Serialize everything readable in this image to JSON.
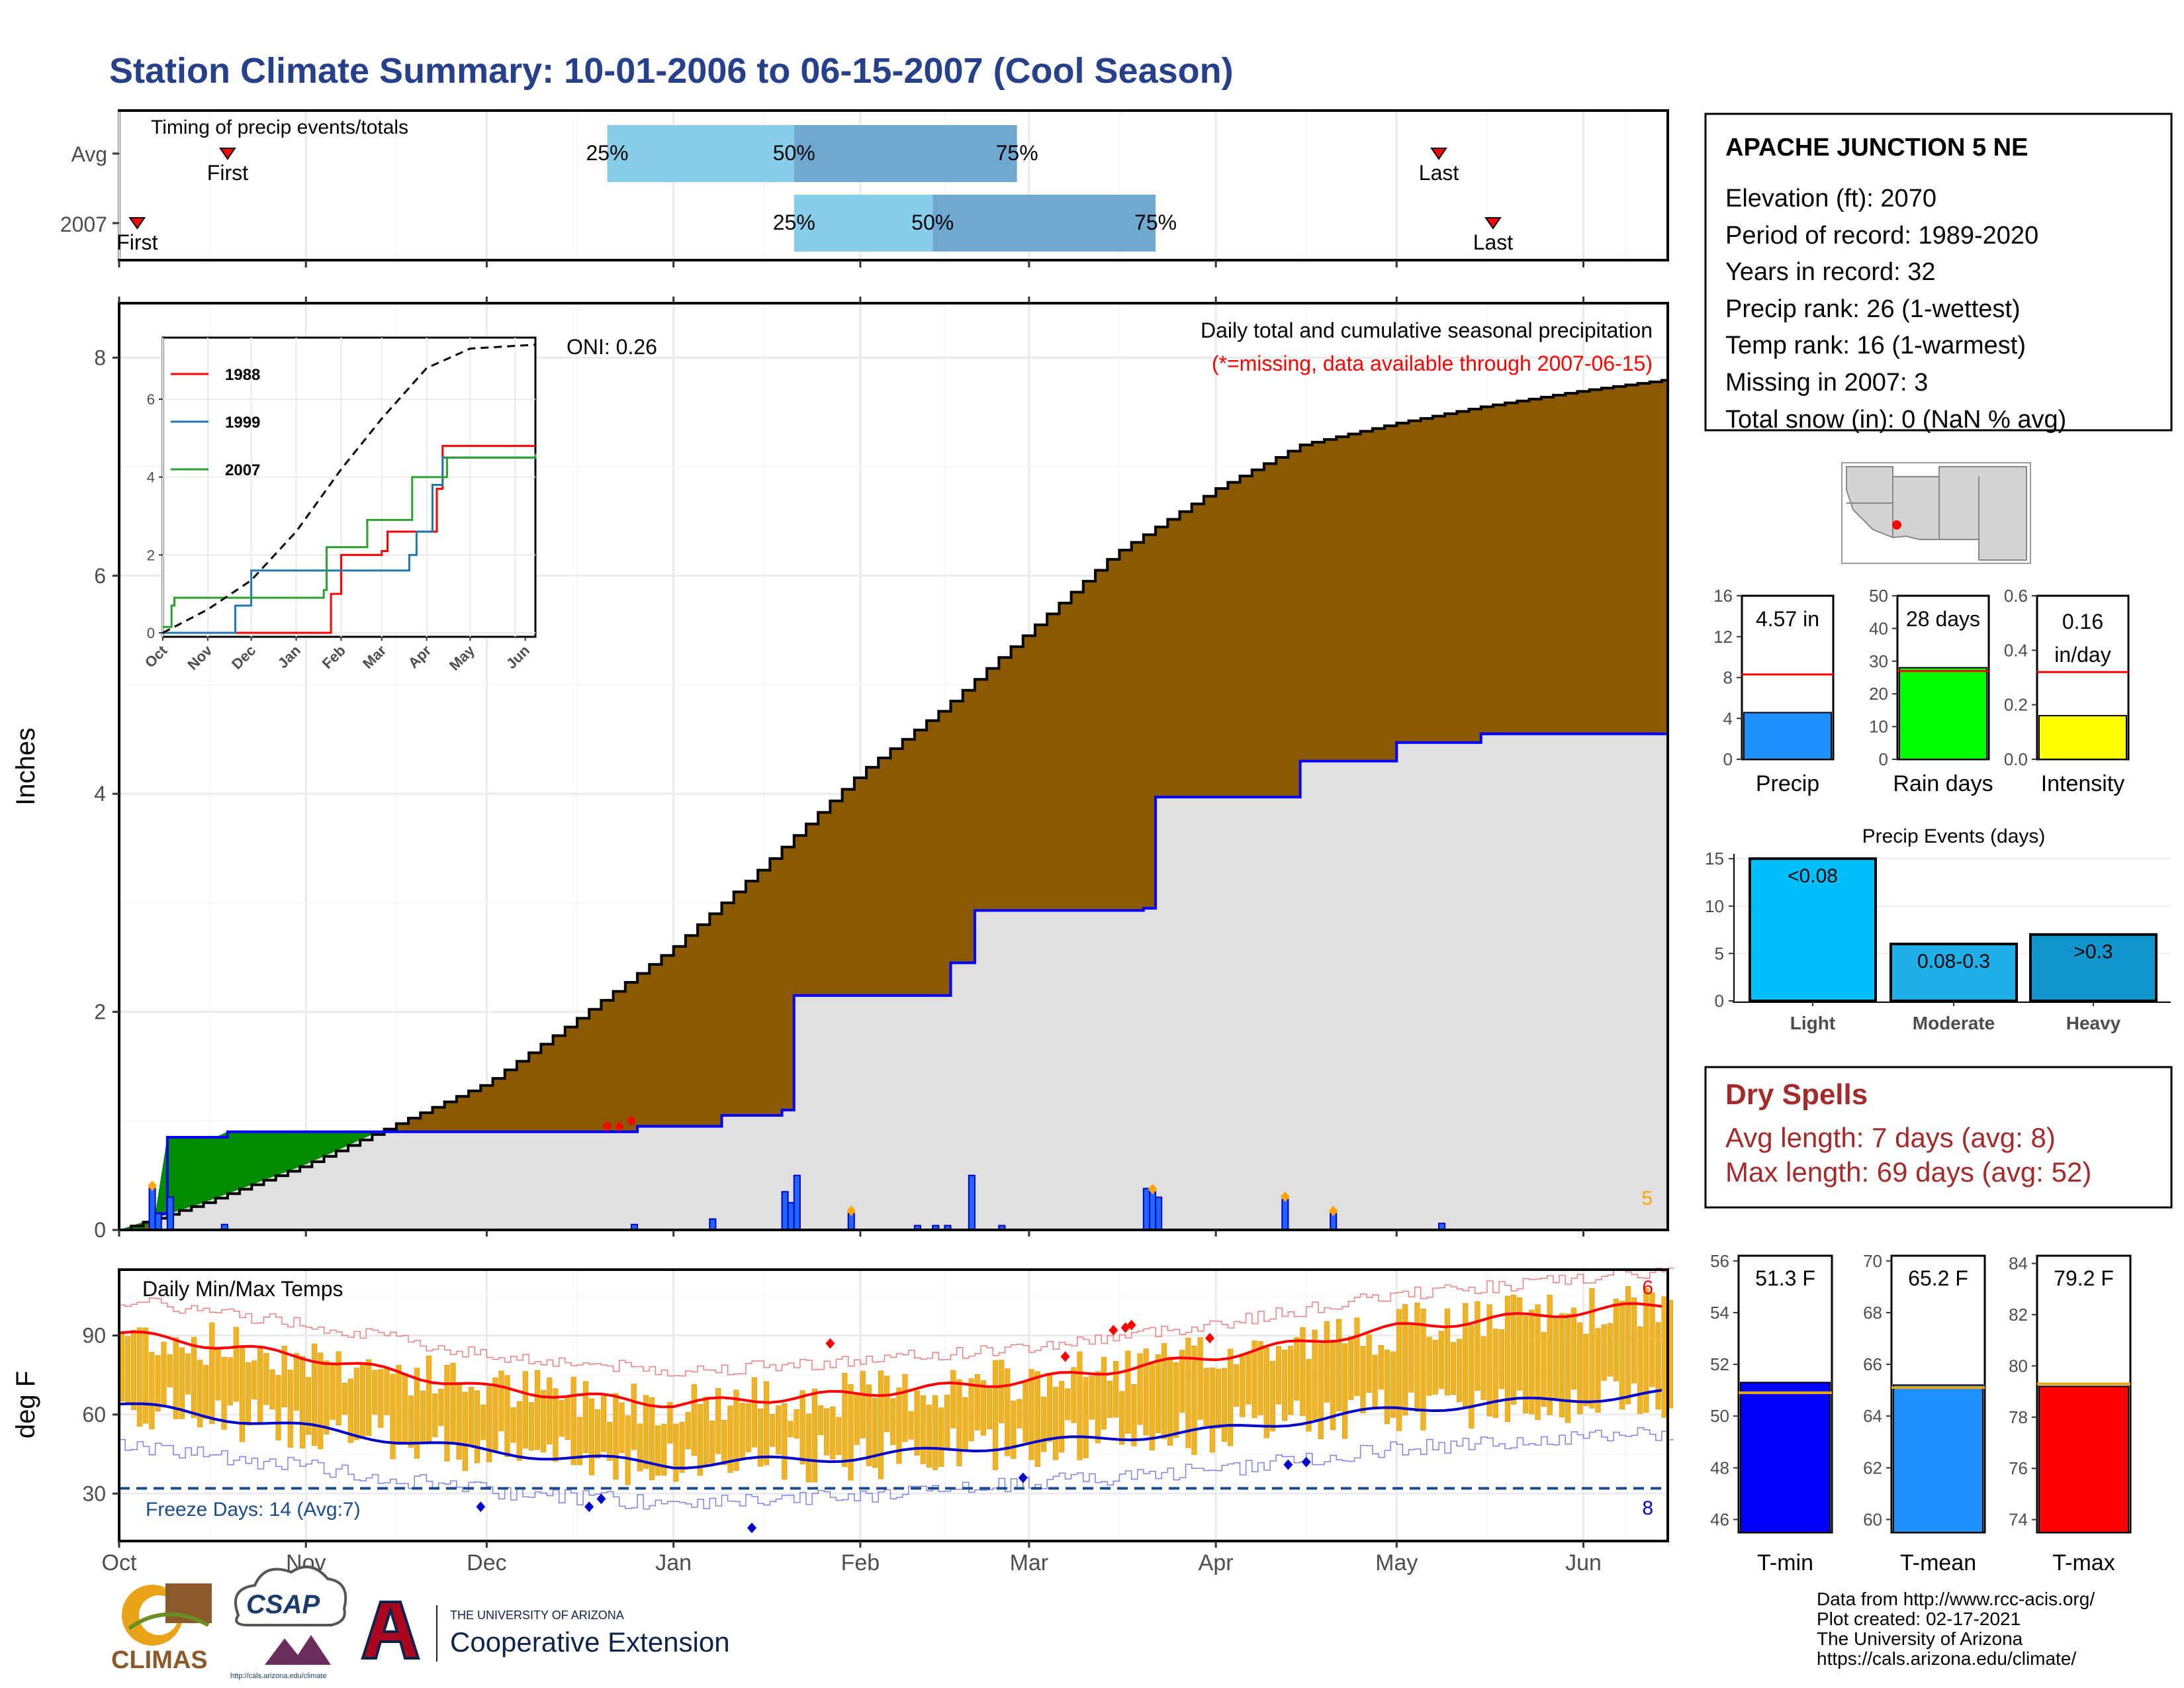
{
  "title": "Station Climate Summary: 10-01-2006 to 06-15-2007 (Cool Season)",
  "colors": {
    "title": "#27408b",
    "brown": "#8b5a00",
    "grey_fill": "#e0e0e0",
    "blue_line": "#0000ff",
    "green_fill": "#008b00",
    "light_blue": "#87ceeb",
    "mid_blue": "#6fa8d1",
    "orange": "#e8a317",
    "red": "#ff0000",
    "dry_spell": "#a52a2a"
  },
  "timing": {
    "label": "Timing of precip events/totals",
    "rows": [
      {
        "name": "Avg",
        "first_label": "First",
        "first_x": "2006-10-19",
        "last_label": "Last",
        "last_x": "2007-05-08",
        "p25_label": "25%",
        "p25": "2006-12-21",
        "p50_label": "50%",
        "p50": "2007-01-21",
        "p75_label": "75%",
        "p75": "2007-02-27"
      },
      {
        "name": "2007",
        "first_label": "First",
        "first_x": "2006-10-04",
        "last_label": "Last",
        "last_x": "2007-05-17",
        "p25_label": "25%",
        "p25": "2007-01-21",
        "p50_label": "50%",
        "p50": "2007-02-13",
        "p75_label": "75%",
        "p75": "2007-03-22"
      }
    ]
  },
  "main_chart": {
    "ylabel": "Inches",
    "caption": "Daily total and cumulative seasonal precipitation",
    "missing_note": "(*=missing, data available through 2007-06-15)",
    "oni": "ONI: 0.26",
    "corner_count": "5",
    "y_ticks": [
      "0",
      "2",
      "4",
      "6",
      "8"
    ],
    "ylim": [
      0,
      8.5
    ],
    "x_months": [
      "Oct",
      "Nov",
      "Dec",
      "Jan",
      "Feb",
      "Mar",
      "Apr",
      "May",
      "Jun"
    ]
  },
  "chart_data": [
    {
      "type": "area",
      "title": "Daily total and cumulative seasonal precipitation",
      "ylabel": "Inches",
      "ylim": [
        0,
        8.5
      ],
      "series": [
        {
          "name": "average cumulative",
          "x": [
            "2006-10-01",
            "2006-10-15",
            "2006-11-01",
            "2006-11-15",
            "2006-12-01",
            "2006-12-15",
            "2007-01-01",
            "2007-01-15",
            "2007-02-01",
            "2007-02-15",
            "2007-03-01",
            "2007-03-15",
            "2007-04-01",
            "2007-04-15",
            "2007-05-01",
            "2007-05-15",
            "2007-06-01",
            "2007-06-15"
          ],
          "values": [
            0.0,
            0.25,
            0.6,
            0.95,
            1.35,
            1.9,
            2.6,
            3.3,
            4.2,
            4.8,
            5.5,
            6.2,
            6.8,
            7.2,
            7.4,
            7.55,
            7.7,
            7.8
          ]
        },
        {
          "name": "2007 cumulative",
          "x": [
            "2006-10-01",
            "2006-10-07",
            "2006-10-09",
            "2006-10-18",
            "2006-11-10",
            "2006-12-25",
            "2007-01-08",
            "2007-01-09",
            "2007-01-19",
            "2007-01-20",
            "2007-01-21",
            "2007-02-15",
            "2007-02-19",
            "2007-03-20",
            "2007-03-22",
            "2007-04-15",
            "2007-05-01",
            "2007-05-15",
            "2007-06-15"
          ],
          "values": [
            0.0,
            0.15,
            0.85,
            0.9,
            0.9,
            0.95,
            1.02,
            1.05,
            1.1,
            1.55,
            2.15,
            2.45,
            2.93,
            2.95,
            3.97,
            4.3,
            4.47,
            4.55,
            4.57
          ]
        },
        {
          "name": "daily precip",
          "x": [
            "2006-10-06",
            "2006-10-07",
            "2006-10-09",
            "2006-10-18",
            "2006-12-25",
            "2007-01-07",
            "2007-01-19",
            "2007-01-20",
            "2007-01-21",
            "2007-01-30",
            "2007-02-10",
            "2007-02-13",
            "2007-02-15",
            "2007-02-19",
            "2007-02-24",
            "2007-03-20",
            "2007-03-21",
            "2007-03-22",
            "2007-04-12",
            "2007-04-20",
            "2007-05-08"
          ],
          "values": [
            0.38,
            0.15,
            0.3,
            0.05,
            0.05,
            0.1,
            0.35,
            0.25,
            0.5,
            0.15,
            0.04,
            0.04,
            0.04,
            0.5,
            0.04,
            0.38,
            0.35,
            0.3,
            0.28,
            0.15,
            0.06
          ]
        }
      ]
    },
    {
      "type": "line",
      "inset": true,
      "x_ticks": [
        "Oct",
        "Nov",
        "Dec",
        "Jan",
        "Feb",
        "Mar",
        "Apr",
        "May",
        "Jun"
      ],
      "y_ticks": [
        "0",
        "2",
        "4",
        "6"
      ],
      "ylim": [
        0,
        7.3
      ],
      "series": [
        {
          "name": "1988",
          "color": "#ff0000",
          "x": [
            "2006-10-01",
            "2007-01-15",
            "2007-01-25",
            "2007-02-01",
            "2007-03-01",
            "2007-03-05",
            "2007-04-05",
            "2007-04-08",
            "2007-04-12",
            "2007-06-15"
          ],
          "values": [
            0,
            0,
            1.0,
            2.0,
            2.1,
            2.6,
            2.6,
            3.7,
            4.8,
            4.8
          ]
        },
        {
          "name": "1999",
          "color": "#1f77b4",
          "x": [
            "2006-10-01",
            "2006-10-25",
            "2006-11-20",
            "2006-12-01",
            "2007-03-20",
            "2007-03-25",
            "2007-04-05",
            "2007-04-12",
            "2007-06-15"
          ],
          "values": [
            0,
            0,
            0.7,
            1.6,
            2.0,
            2.6,
            3.8,
            4.5,
            4.6
          ]
        },
        {
          "name": "2007",
          "color": "#2ca02c",
          "x": [
            "2006-10-01",
            "2006-10-07",
            "2006-10-09",
            "2007-01-20",
            "2007-01-22",
            "2007-02-19",
            "2007-03-22",
            "2007-04-15",
            "2007-06-15"
          ],
          "values": [
            0.15,
            0.7,
            0.9,
            1.1,
            2.2,
            2.9,
            4.0,
            4.5,
            4.6
          ]
        },
        {
          "name": "average",
          "color": "#000000",
          "dash": true,
          "x": [
            "2006-10-01",
            "2006-11-01",
            "2006-12-01",
            "2007-01-01",
            "2007-02-01",
            "2007-03-01",
            "2007-04-01",
            "2007-05-01",
            "2007-06-15"
          ],
          "values": [
            0,
            0.6,
            1.35,
            2.6,
            4.2,
            5.5,
            6.8,
            7.3,
            7.4
          ]
        }
      ]
    },
    {
      "type": "bar",
      "title": "Daily Min/Max Temps",
      "ylabel": "deg F",
      "y_ticks": [
        "30",
        "60",
        "90"
      ],
      "ylim": [
        12,
        115
      ],
      "x_months": [
        "Oct",
        "Nov",
        "Dec",
        "Jan",
        "Feb",
        "Mar",
        "Apr",
        "May",
        "Jun"
      ],
      "freeze_label": "Freeze Days: 14 (Avg:7)",
      "freeze_line": 32,
      "corner_top": "6",
      "corner_bottom": "8",
      "avg_max_x": [
        "2006-10-01",
        "2006-11-01",
        "2006-12-01",
        "2007-01-01",
        "2007-02-01",
        "2007-03-01",
        "2007-04-01",
        "2007-05-01",
        "2007-06-15"
      ],
      "avg_max": [
        91,
        82,
        70,
        64,
        68,
        73,
        82,
        93,
        102
      ],
      "avg_min_x": [
        "2006-10-01",
        "2006-11-01",
        "2006-12-01",
        "2007-01-01",
        "2007-02-01",
        "2007-03-01",
        "2007-04-01",
        "2007-05-01",
        "2007-06-15"
      ],
      "avg_min": [
        64,
        55,
        46,
        41,
        44,
        49,
        54,
        62,
        68
      ]
    },
    {
      "type": "bar",
      "categories": [
        "Precip",
        "Rain days",
        "Intensity"
      ],
      "values": [
        4.57,
        28,
        0.16
      ],
      "averages": [
        8.3,
        27,
        0.32
      ],
      "labels": [
        "4.57 in",
        "28 days",
        "0.16 in/day"
      ],
      "label_line1": "0.16",
      "label_line2": "in/day",
      "y_ticks": [
        [
          "0",
          "4",
          "8",
          "12",
          "16"
        ],
        [
          "0",
          "10",
          "20",
          "30",
          "40",
          "50"
        ],
        [
          "0.0",
          "0.2",
          "0.4",
          "0.6"
        ]
      ],
      "ylims": [
        [
          0,
          16
        ],
        [
          0,
          50
        ],
        [
          0,
          0.6
        ]
      ],
      "fill_colors": [
        "#1e90ff",
        "#00ff00",
        "#ffff00"
      ]
    },
    {
      "type": "bar",
      "title": "Precip Events (days)",
      "categories": [
        "Light",
        "Moderate",
        "Heavy"
      ],
      "values": [
        15,
        6,
        7
      ],
      "bar_labels": [
        "<0.08",
        "0.08-0.3",
        ">0.3"
      ],
      "y_ticks": [
        "0",
        "5",
        "10",
        "15"
      ],
      "ylim": [
        0,
        15.5
      ]
    },
    {
      "type": "bar",
      "categories": [
        "T-min",
        "T-mean",
        "T-max"
      ],
      "values": [
        51.3,
        65.2,
        79.2
      ],
      "averages": [
        50.9,
        65.1,
        79.3
      ],
      "labels": [
        "51.3 F",
        "65.2 F",
        "79.2 F"
      ],
      "y_ticks": [
        [
          "46",
          "48",
          "50",
          "52",
          "54",
          "56"
        ],
        [
          "60",
          "62",
          "64",
          "66",
          "68",
          "70"
        ],
        [
          "74",
          "76",
          "78",
          "80",
          "82",
          "84"
        ]
      ],
      "ylims": [
        [
          45.5,
          56.2
        ],
        [
          59.5,
          70.2
        ],
        [
          73.5,
          84.3
        ]
      ],
      "fill_colors": [
        "#0000ff",
        "#1e90ff",
        "#ff0000"
      ]
    }
  ],
  "station": {
    "name": "APACHE JUNCTION 5 NE",
    "lines": [
      "Elevation (ft): 2070",
      "Period of record: 1989-2020",
      "Years in record: 32",
      "Precip rank: 26 (1-wettest)",
      "Temp rank: 16 (1-warmest)",
      "Missing in 2007: 3",
      "Total snow (in): 0 (NaN % avg)"
    ]
  },
  "dry_spells": {
    "title": "Dry Spells",
    "avg": "Avg length: 7 days (avg: 8)",
    "max": "Max length: 69 days (avg: 52)"
  },
  "footer": {
    "lines": [
      "Data from http://www.rcc-acis.org/",
      "Plot created: 02-17-2021",
      "The University of Arizona",
      "https://cals.arizona.edu/climate/"
    ],
    "climas": "CLIMAS",
    "csap": "CSAP",
    "csap_url": "http://cals.arizona.edu/climate",
    "ua_small": "THE UNIVERSITY OF ARIZONA",
    "ua_big": "Cooperative Extension"
  }
}
